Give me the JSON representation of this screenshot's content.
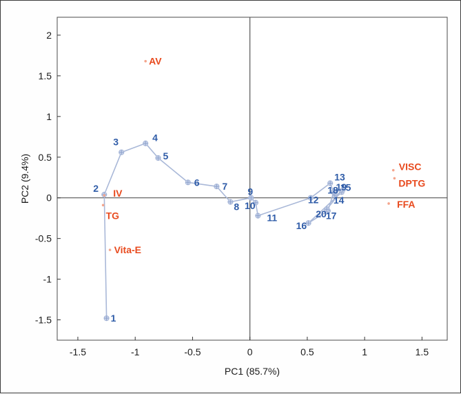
{
  "chart_data": {
    "type": "scatter",
    "title": "",
    "xlabel": "PC1 (85.7%)",
    "ylabel": "PC2 (9.4%)",
    "xlim": [
      -1.68,
      1.72
    ],
    "ylim": [
      -1.75,
      2.22
    ],
    "xticks": [
      -1.5,
      -1,
      -0.5,
      0,
      0.5,
      1,
      1.5
    ],
    "xtick_labels": [
      "-1.5",
      "-1",
      "-0.5",
      "0",
      "0.5",
      "1",
      "1.5"
    ],
    "yticks": [
      -1.5,
      -1,
      -0.5,
      0,
      0.5,
      1,
      1.5,
      2
    ],
    "ytick_labels": [
      "-1.5",
      "-1",
      "-0.5",
      "0",
      "0.5",
      "1",
      "1.5",
      "2"
    ],
    "grid": false,
    "reference_lines": {
      "x": 0,
      "y": 0
    },
    "colors": {
      "scores": "#2f5ca8",
      "trajectory": "#a9b8d8",
      "loadings": "#e84a1e",
      "axes": "#555555"
    },
    "series": [
      {
        "kind": "scores",
        "points": [
          {
            "label": "1",
            "x": -1.25,
            "y": -1.48
          },
          {
            "label": "2",
            "x": -1.27,
            "y": 0.04
          },
          {
            "label": "3",
            "x": -1.12,
            "y": 0.56
          },
          {
            "label": "4",
            "x": -0.91,
            "y": 0.67
          },
          {
            "label": "5",
            "x": -0.8,
            "y": 0.49
          },
          {
            "label": "6",
            "x": -0.54,
            "y": 0.19
          },
          {
            "label": "7",
            "x": -0.29,
            "y": 0.14
          },
          {
            "label": "8",
            "x": -0.17,
            "y": -0.05
          },
          {
            "label": "9",
            "x": 0.01,
            "y": 0.0
          },
          {
            "label": "10",
            "x": 0.05,
            "y": -0.06
          },
          {
            "label": "11",
            "x": 0.07,
            "y": -0.22
          },
          {
            "label": "12",
            "x": 0.53,
            "y": 0.0
          },
          {
            "label": "13",
            "x": 0.7,
            "y": 0.18
          },
          {
            "label": "14",
            "x": 0.74,
            "y": 0.03
          },
          {
            "label": "15",
            "x": 0.8,
            "y": 0.07
          },
          {
            "label": "16",
            "x": 0.51,
            "y": -0.31
          },
          {
            "label": "17",
            "x": 0.68,
            "y": -0.16
          },
          {
            "label": "18",
            "x": 0.73,
            "y": 0.07
          },
          {
            "label": "19",
            "x": 0.81,
            "y": 0.1
          },
          {
            "label": "20",
            "x": 0.67,
            "y": -0.14
          }
        ]
      },
      {
        "kind": "loadings",
        "points": [
          {
            "label": "AV",
            "x": -0.91,
            "y": 1.68
          },
          {
            "label": "IV",
            "x": -1.27,
            "y": 0.03
          },
          {
            "label": "TG",
            "x": -1.28,
            "y": -0.09
          },
          {
            "label": "Vita-E",
            "x": -1.22,
            "y": -0.64
          },
          {
            "label": "VISC",
            "x": 1.25,
            "y": 0.34
          },
          {
            "label": "DPTG",
            "x": 1.26,
            "y": 0.24
          },
          {
            "label": "FFA",
            "x": 1.21,
            "y": -0.07
          }
        ]
      }
    ],
    "trajectory_order": [
      "1",
      "2",
      "3",
      "4",
      "5",
      "6",
      "7",
      "8",
      "9",
      "10",
      "11",
      "12",
      "13",
      "14",
      "15",
      "16",
      "17",
      "18",
      "19",
      "20"
    ]
  }
}
